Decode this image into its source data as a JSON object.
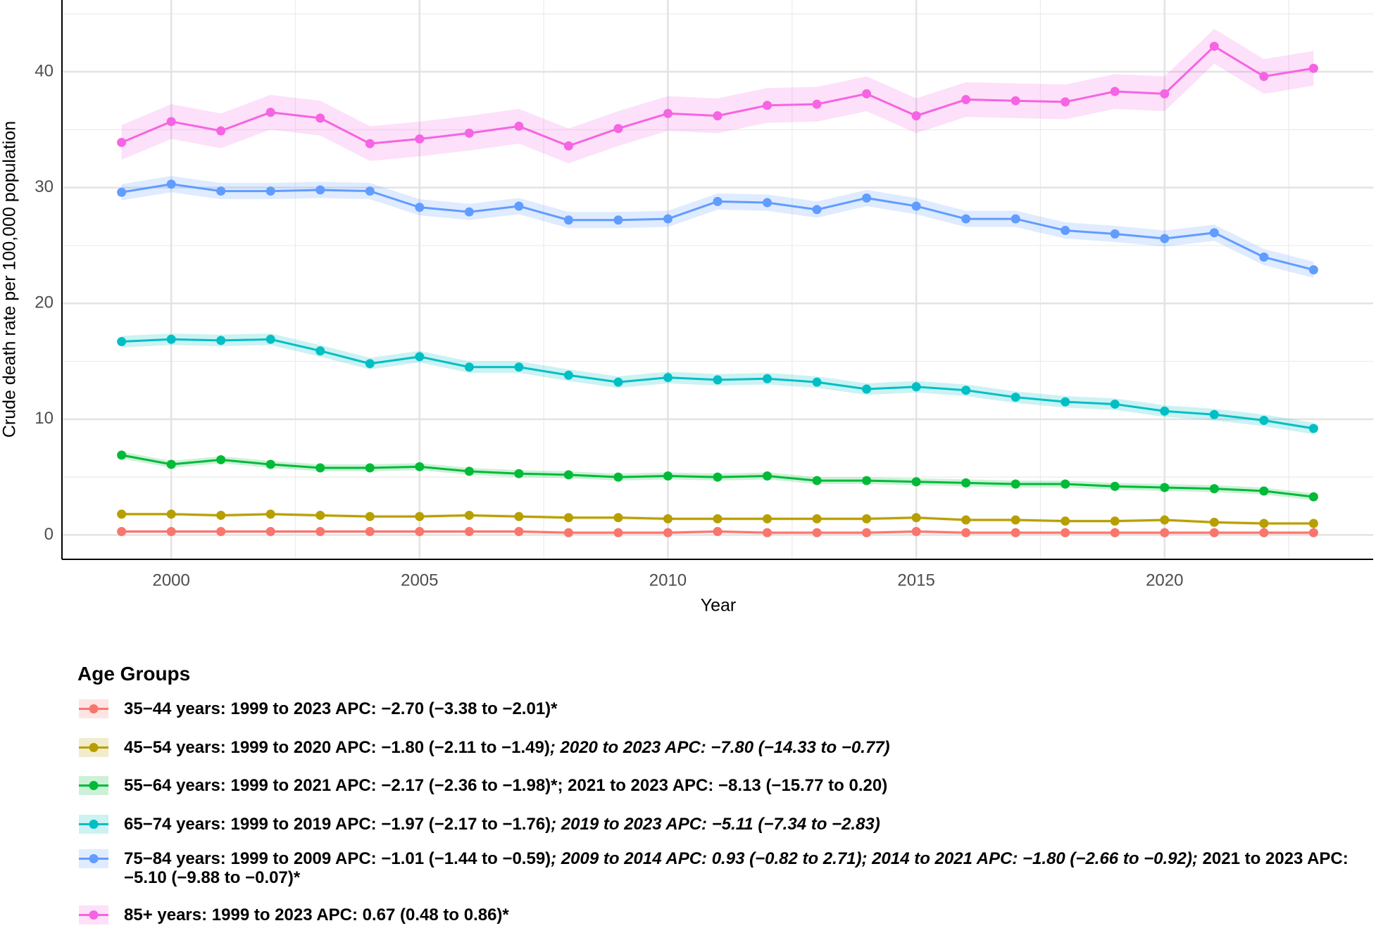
{
  "chart_data": {
    "type": "line",
    "y_label": "Crude death rate per 100,000 population",
    "x_label": "Year",
    "legend_title": "Age Groups",
    "x": [
      1999,
      2000,
      2001,
      2002,
      2003,
      2004,
      2005,
      2006,
      2007,
      2008,
      2009,
      2010,
      2011,
      2012,
      2013,
      2014,
      2015,
      2016,
      2017,
      2018,
      2019,
      2020,
      2021,
      2022,
      2023
    ],
    "xlim": [
      1997.8,
      2024.2
    ],
    "xticks": [
      2000,
      2005,
      2010,
      2015,
      2020
    ],
    "ylim": [
      -2.1,
      46.2
    ],
    "yticks": [
      0,
      10,
      20,
      30,
      40
    ],
    "grid": true,
    "series": [
      {
        "name": [
          "35−44 years: 1999 to 2023 APC: −2.70 (−3.38 to −2.01)*"
        ],
        "italic": [
          false
        ],
        "color": "#F8766D",
        "error": 0.15,
        "values": [
          0.3,
          0.3,
          0.3,
          0.3,
          0.3,
          0.3,
          0.3,
          0.3,
          0.3,
          0.2,
          0.2,
          0.2,
          0.3,
          0.2,
          0.2,
          0.2,
          0.3,
          0.2,
          0.2,
          0.2,
          0.2,
          0.2,
          0.2,
          0.2,
          0.2
        ]
      },
      {
        "name": [
          "45−54 years: 1999 to 2020 APC: −1.80 (−2.11 to −1.49)",
          "; 2020 to 2023 APC: −7.80 (−14.33 to −0.77)"
        ],
        "italic": [
          false,
          true
        ],
        "color": "#B79F00",
        "error": 0.15,
        "values": [
          1.8,
          1.8,
          1.7,
          1.8,
          1.7,
          1.6,
          1.6,
          1.7,
          1.6,
          1.5,
          1.5,
          1.4,
          1.4,
          1.4,
          1.4,
          1.4,
          1.5,
          1.3,
          1.3,
          1.2,
          1.2,
          1.3,
          1.1,
          1.0,
          1.0
        ]
      },
      {
        "name": [
          "55−64 years: 1999 to 2021 APC: −2.17 (−2.36 to −1.98)*; 2021 to 2023 APC: −8.13 (−15.77 to 0.20)"
        ],
        "italic": [
          false
        ],
        "color": "#00BA38",
        "error": 0.3,
        "values": [
          6.9,
          6.1,
          6.5,
          6.1,
          5.8,
          5.8,
          5.9,
          5.5,
          5.3,
          5.2,
          5.0,
          5.1,
          5.0,
          5.1,
          4.7,
          4.7,
          4.6,
          4.5,
          4.4,
          4.4,
          4.2,
          4.1,
          4.0,
          3.8,
          3.3
        ]
      },
      {
        "name": [
          "65−74 years: 1999 to 2019 APC: −1.97 (−2.17 to −1.76)",
          "; 2019 to 2023 APC: −5.11 (−7.34 to −2.83)"
        ],
        "italic": [
          false,
          true
        ],
        "color": "#00BFC4",
        "error": 0.5,
        "values": [
          16.7,
          16.9,
          16.8,
          16.9,
          15.9,
          14.8,
          15.4,
          14.5,
          14.5,
          13.8,
          13.2,
          13.6,
          13.4,
          13.5,
          13.2,
          12.6,
          12.8,
          12.5,
          11.9,
          11.5,
          11.3,
          10.7,
          10.4,
          9.9,
          9.2
        ]
      },
      {
        "name": [
          "75−84 years: 1999 to 2009 APC: −1.01 (−1.44 to −0.59)",
          "; 2009 to 2014 APC: 0.93 (−0.82 to 2.71); 2014 to 2021 APC: −1.80 (−2.66 to −0.92);",
          " 2021 to 2023 APC: −5.10 (−9.88 to −0.07)*"
        ],
        "italic": [
          false,
          true,
          false
        ],
        "color": "#619CFF",
        "error": 0.7,
        "values": [
          29.6,
          30.3,
          29.7,
          29.7,
          29.8,
          29.7,
          28.3,
          27.9,
          28.4,
          27.2,
          27.2,
          27.3,
          28.8,
          28.7,
          28.1,
          29.1,
          28.4,
          27.3,
          27.3,
          26.3,
          26.0,
          25.6,
          26.1,
          24.0,
          22.9
        ]
      },
      {
        "name": [
          "85+ years: 1999 to 2023 APC: 0.67 (0.48 to 0.86)*"
        ],
        "italic": [
          false
        ],
        "color": "#F564E3",
        "error": 1.5,
        "values": [
          33.9,
          35.7,
          34.9,
          36.5,
          36.0,
          33.8,
          34.2,
          34.7,
          35.3,
          33.6,
          35.1,
          36.4,
          36.2,
          37.1,
          37.2,
          38.1,
          36.2,
          37.6,
          37.5,
          37.4,
          38.3,
          38.1,
          42.2,
          39.6,
          40.3
        ]
      }
    ]
  }
}
